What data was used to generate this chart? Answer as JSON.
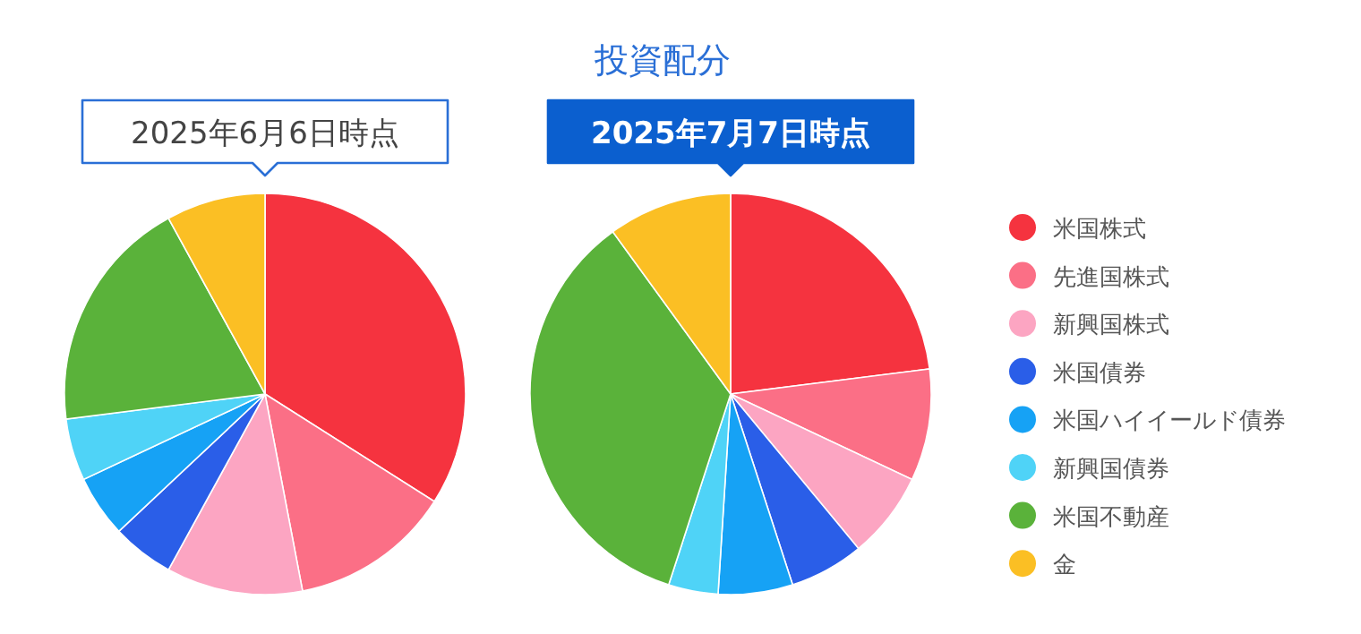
{
  "chart_data": {
    "type": "pie",
    "title": "投資配分",
    "categories": [
      "米国株式",
      "先進国株式",
      "新興国株式",
      "米国債券",
      "米国ハイイールド債券",
      "新興国債券",
      "米国不動産",
      "金"
    ],
    "colors": [
      "#f5333f",
      "#fb6f86",
      "#fca5c2",
      "#2a5ee8",
      "#16a2f5",
      "#4fd3f7",
      "#5ab23a",
      "#fbbf24"
    ],
    "series": [
      {
        "name": "2025年6月6日時点",
        "values": [
          34,
          13,
          11,
          5,
          5,
          5,
          19,
          8
        ]
      },
      {
        "name": "2025年7月7日時点",
        "values": [
          23,
          9,
          7,
          6,
          6,
          4,
          35,
          10
        ]
      }
    ],
    "legend": "right"
  }
}
